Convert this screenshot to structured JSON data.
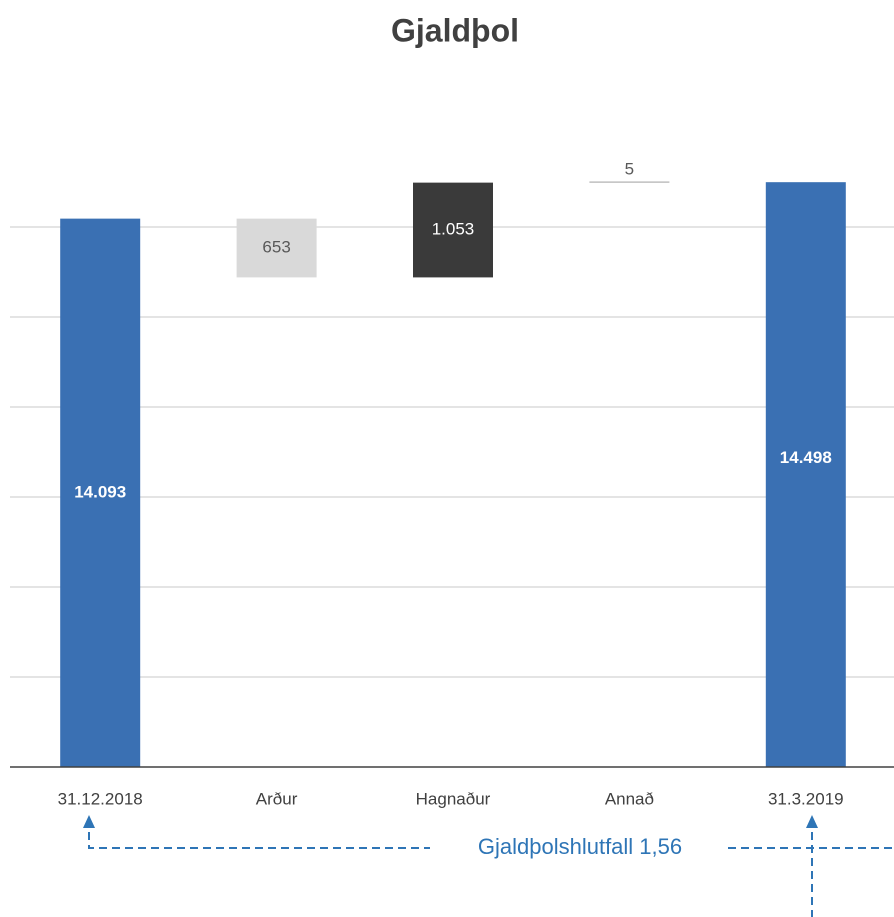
{
  "chart_data": {
    "type": "waterfall",
    "title": "Gjaldþol",
    "categories": [
      "31.12.2018",
      "Arður",
      "Hagnaður",
      "Annað",
      "31.3.2019"
    ],
    "values": [
      14093,
      -653,
      1053,
      5,
      14498
    ],
    "value_labels": [
      "14.093",
      "653",
      "1.053",
      "5",
      "14.498"
    ],
    "measure": [
      "absolute",
      "relative",
      "relative",
      "relative",
      "total"
    ],
    "colors": [
      "#3a70b3",
      "#d9d9d9",
      "#3a3a3a",
      "#bfbfbf",
      "#3a70b3"
    ],
    "label_colors": [
      "#ffffff",
      "#595959",
      "#ffffff",
      "#595959",
      "#ffffff"
    ],
    "ylim": [
      8000,
      15000
    ],
    "yticks": [
      9000,
      10000,
      11000,
      12000,
      13000,
      14000
    ],
    "ytick_labels": false,
    "grid": true,
    "annotation": "Gjaldþolshlutfall 1,56"
  }
}
